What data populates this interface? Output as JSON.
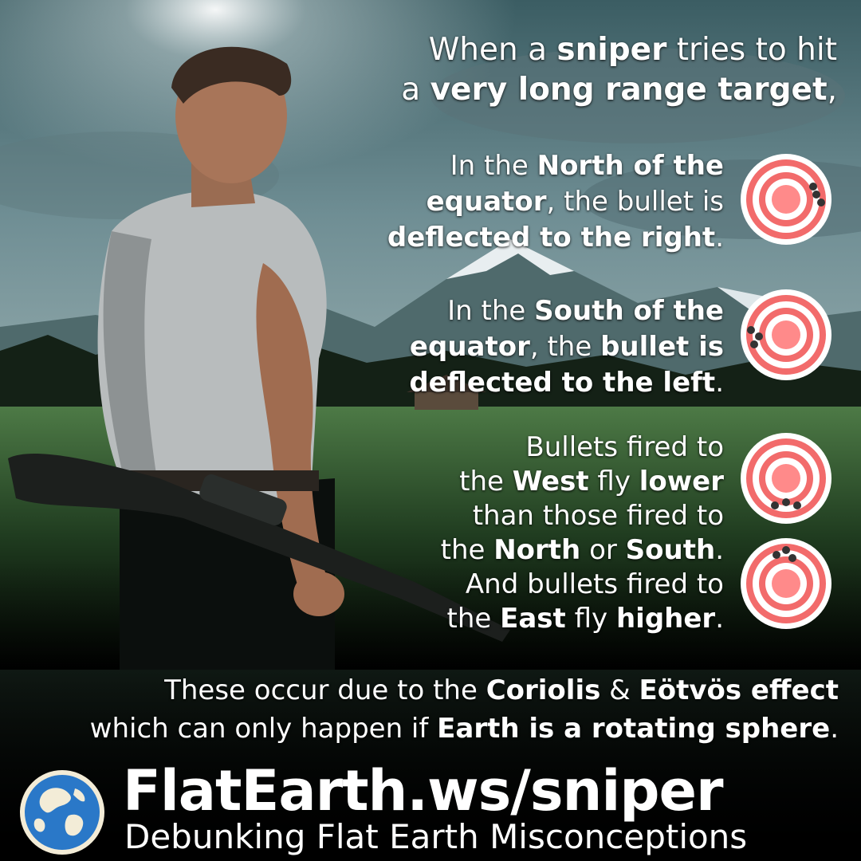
{
  "intro": {
    "l1a": "When a ",
    "l1b": "sniper",
    "l1c": " tries to hit",
    "l2a": "a ",
    "l2b": "very long range target",
    "l2c": ","
  },
  "north": {
    "l1a": "In the ",
    "l1b": "North of the",
    "l2a": "equator",
    "l2b": ", the bullet is",
    "l3a": "deflected to the right",
    "l3b": "."
  },
  "south": {
    "l1a": "In the ",
    "l1b": "South of the",
    "l2a": "equator",
    "l2b": ", the ",
    "l2c": "bullet is",
    "l3a": "deflected to the left",
    "l3b": "."
  },
  "eotvos": {
    "l1": "Bullets fired to",
    "l2a": "the ",
    "l2b": "West",
    "l2c": " fly ",
    "l2d": "lower",
    "l3": "than those fired to",
    "l4a": "the ",
    "l4b": "North",
    "l4c": " or ",
    "l4d": "South",
    "l4e": ".",
    "l5": "And bullets fired to",
    "l6a": "the ",
    "l6b": "East",
    "l6c": " fly ",
    "l6d": "higher",
    "l6e": "."
  },
  "conclusion": {
    "l1a": "These occur due to the ",
    "l1b": "Coriolis",
    "l1c": " & ",
    "l1d": "Eötvös effect",
    "l2a": "which can only happen if ",
    "l2b": "Earth is a rotating sphere",
    "l2c": "."
  },
  "footer": {
    "site": "FlatEarth.ws/sniper",
    "tagline": "Debunking Flat Earth Misconceptions"
  },
  "colors": {
    "target_ring": "#f26b6b",
    "target_center": "#ff8a8a",
    "globe_ocean": "#2a78c8",
    "globe_land": "#f3ecd7"
  },
  "icons": [
    "target-icon",
    "bullet-hole-icon",
    "globe-logo-icon"
  ]
}
